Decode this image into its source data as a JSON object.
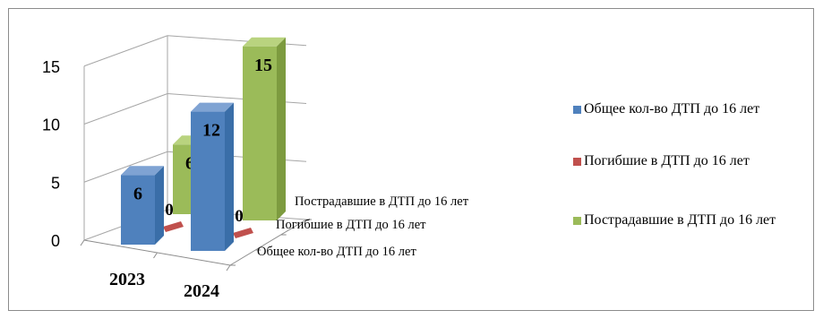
{
  "chart_data": {
    "type": "bar",
    "style": "3d-clustered",
    "categories": [
      "2023",
      "2024"
    ],
    "series": [
      {
        "name": "Общее кол-во ДТП до 16 лет",
        "values": [
          6,
          12
        ],
        "color": "#4f81bd",
        "side": "#3a6ea8",
        "top": "#7fa3d3"
      },
      {
        "name": "Погибшие в ДТП до 16 лет",
        "values": [
          0,
          0
        ],
        "color": "#c0504d",
        "side": "#9e3a37",
        "top": "#d2736f"
      },
      {
        "name": "Пострадавшие в ДТП до 16 лет",
        "values": [
          6,
          15
        ],
        "color": "#9bbb59",
        "side": "#7d9b3f",
        "top": "#b9d37f"
      }
    ],
    "ylim": [
      0,
      15
    ],
    "yticks": [
      0,
      5,
      10,
      15
    ],
    "grid": true,
    "legend": "right"
  }
}
